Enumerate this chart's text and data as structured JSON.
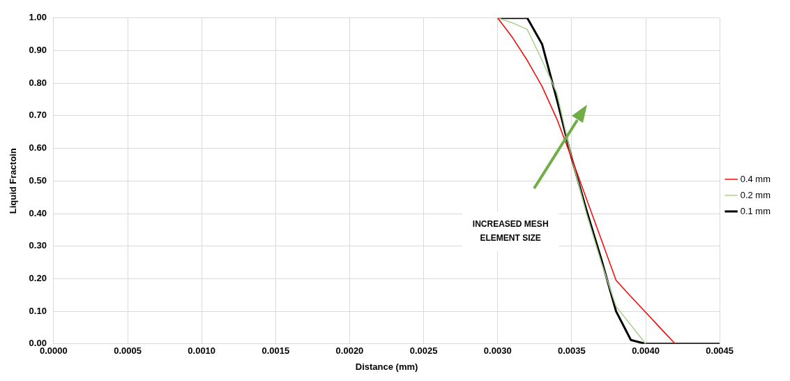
{
  "chart_data": {
    "type": "line",
    "xlabel": "Distance (mm)",
    "ylabel": "Liquid Fractoin",
    "x": [
      0.003,
      0.0031,
      0.0032,
      0.0033,
      0.0034,
      0.0035,
      0.0036,
      0.0037,
      0.0038,
      0.0039,
      0.004,
      0.0041,
      0.0042,
      0.0043,
      0.0044,
      0.0045
    ],
    "series": [
      {
        "name": "0.4 mm",
        "color": "#ff0000",
        "values": [
          1,
          0.94,
          0.87,
          0.79,
          0.69,
          0.57,
          0.445,
          0.32,
          0.195,
          0.145,
          0.097,
          0.048,
          0,
          null,
          null,
          null
        ]
      },
      {
        "name": "0.2 mm",
        "color": "#a9d18e",
        "values": [
          1,
          0.985,
          0.965,
          0.87,
          0.77,
          0.57,
          0.4,
          0.25,
          0.115,
          0.058,
          0,
          null,
          null,
          null,
          null,
          null
        ]
      },
      {
        "name": "0.1 mm",
        "color": "#000000",
        "values": [
          1,
          1,
          1,
          0.92,
          0.75,
          0.57,
          0.41,
          0.26,
          0.1,
          0.012,
          0,
          0,
          0,
          0,
          0,
          0
        ]
      }
    ],
    "xlim": [
      0,
      0.0045
    ],
    "xticks": [
      {
        "value": 0,
        "label": "0.0000"
      },
      {
        "value": 0.0005,
        "label": "0.0005"
      },
      {
        "value": 0.001,
        "label": "0.0010"
      },
      {
        "value": 0.0015,
        "label": "0.0015"
      },
      {
        "value": 0.002,
        "label": "0.0020"
      },
      {
        "value": 0.0025,
        "label": "0.0025"
      },
      {
        "value": 0.003,
        "label": "0.0030"
      },
      {
        "value": 0.0035,
        "label": "0.0035"
      },
      {
        "value": 0.004,
        "label": "0.0040"
      },
      {
        "value": 0.0045,
        "label": "0.0045"
      }
    ],
    "ylim": [
      0,
      1
    ],
    "yticks": [
      {
        "value": 0,
        "label": "0.00"
      },
      {
        "value": 0.1,
        "label": "0.10"
      },
      {
        "value": 0.2,
        "label": "0.20"
      },
      {
        "value": 0.3,
        "label": "0.30"
      },
      {
        "value": 0.4,
        "label": "0.40"
      },
      {
        "value": 0.5,
        "label": "0.50"
      },
      {
        "value": 0.6,
        "label": "0.60"
      },
      {
        "value": 0.7,
        "label": "0.70"
      },
      {
        "value": 0.8,
        "label": "0.80"
      },
      {
        "value": 0.9,
        "label": "0.90"
      },
      {
        "value": 1,
        "label": "1.00"
      }
    ],
    "annotations": [
      "INCREASED MESH ELEMENT SIZE"
    ],
    "grid": true,
    "legend": "right",
    "marker": "none",
    "line_style": "solid"
  }
}
